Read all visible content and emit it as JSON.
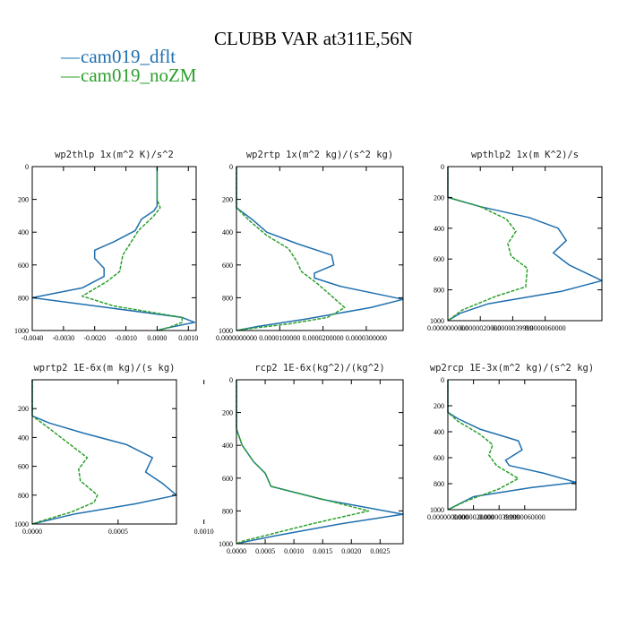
{
  "figure": {
    "title": "CLUBB VAR at311E,56N",
    "colors": {
      "dflt": "#1f6fae",
      "noZM": "#2ca02c"
    }
  },
  "legend": {
    "items": [
      {
        "marker": "—",
        "label": "cam019_dflt",
        "color": "#1f6fae"
      },
      {
        "marker": "—",
        "label": "cam019_noZM",
        "color": "#2ca02c"
      }
    ]
  },
  "chart_data": [
    {
      "type": "line",
      "title": "wp2thlp  1x(m^2 K)/s^2",
      "xlim": [
        -0.004,
        0.00125
      ],
      "ylim": [
        1000,
        0
      ],
      "xticks": [
        "-0.0040",
        "-0.0030",
        "-0.0020",
        "-0.0010",
        "0.0000",
        "0.0010"
      ],
      "xtick_values": [
        -0.004,
        -0.003,
        -0.002,
        -0.001,
        0,
        0.001
      ],
      "yticks": [
        "0",
        "200",
        "400",
        "600",
        "800",
        "1000"
      ],
      "ytick_values": [
        0,
        200,
        400,
        600,
        800,
        1000
      ],
      "series": [
        {
          "name": "cam019_dflt",
          "dashed": false,
          "x": [
            0,
            0,
            0,
            -0.0001,
            -0.0005,
            -0.0007,
            -0.0014,
            -0.002,
            -0.002,
            -0.0017,
            -0.0017,
            -0.0024,
            -0.004,
            -0.002,
            0.0008,
            0.0012,
            0.0003,
            0
          ],
          "y": [
            0,
            200,
            240,
            270,
            320,
            390,
            460,
            510,
            560,
            620,
            670,
            740,
            800,
            850,
            920,
            950,
            985,
            1000
          ]
        },
        {
          "name": "cam019_noZM",
          "dashed": true,
          "x": [
            0,
            0,
            0.0001,
            -0.0001,
            -0.0006,
            -0.0009,
            -0.0011,
            -0.0012,
            -0.0016,
            -0.0024,
            -0.0014,
            0.0008,
            0.0008,
            0.0004,
            0
          ],
          "y": [
            0,
            200,
            250,
            300,
            390,
            480,
            540,
            640,
            700,
            790,
            850,
            920,
            950,
            980,
            1000
          ]
        }
      ]
    },
    {
      "type": "line",
      "title": "wp2rtp  1x(m^2 kg)/(s^2 kg)",
      "xlim": [
        0,
        3.85e-05
      ],
      "ylim": [
        1000,
        0
      ],
      "xticks": [
        "0.0000000000",
        "0.0000100000",
        "0.0000200000",
        "0.0000300000"
      ],
      "xtick_values": [
        0,
        1e-05,
        2e-05,
        3e-05
      ],
      "yticks": [
        "0",
        "200",
        "400",
        "600",
        "800",
        "1000"
      ],
      "ytick_values": [
        0,
        200,
        400,
        600,
        800,
        1000
      ],
      "series": [
        {
          "name": "cam019_dflt",
          "dashed": false,
          "x": [
            0,
            0,
            4e-06,
            7e-06,
            1.4e-05,
            2.2e-05,
            2.25e-05,
            1.8e-05,
            1.8e-05,
            2.4e-05,
            3.85e-05,
            3.1e-05,
            1.6e-05,
            5e-06,
            0
          ],
          "y": [
            0,
            250,
            330,
            400,
            470,
            540,
            600,
            650,
            680,
            730,
            810,
            860,
            930,
            975,
            1000
          ]
        },
        {
          "name": "cam019_noZM",
          "dashed": true,
          "x": [
            0,
            0,
            3e-06,
            7e-06,
            1.2e-05,
            1.4e-05,
            1.5e-05,
            1.9e-05,
            2.5e-05,
            2.1e-05,
            1.2e-05,
            4e-06,
            0
          ],
          "y": [
            0,
            250,
            330,
            420,
            500,
            580,
            640,
            720,
            860,
            920,
            960,
            985,
            1000
          ]
        }
      ]
    },
    {
      "type": "line",
      "title": "wpthlp2  1x(m K^2)/s",
      "xlim": [
        0,
        9.5e-06
      ],
      "ylim": [
        1000,
        0
      ],
      "xticks": [
        "0.0000000000",
        "0.0000020000",
        "0.0000039999",
        "0.0000060000"
      ],
      "xtick_values": [
        0,
        2e-06,
        3.9999e-06,
        6e-06
      ],
      "yticks": [
        "0",
        "200",
        "400",
        "600",
        "800",
        "1000"
      ],
      "ytick_values": [
        0,
        200,
        400,
        600,
        800,
        1000
      ],
      "series": [
        {
          "name": "cam019_dflt",
          "dashed": false,
          "x": [
            0,
            0,
            2e-06,
            5e-06,
            6.8e-06,
            7.3e-06,
            6.5e-06,
            7.5e-06,
            9.5e-06,
            7e-06,
            2.5e-06,
            8e-07,
            0
          ],
          "y": [
            0,
            200,
            260,
            330,
            400,
            480,
            560,
            640,
            740,
            810,
            890,
            950,
            1000
          ]
        },
        {
          "name": "cam019_noZM",
          "dashed": true,
          "x": [
            0,
            0,
            2e-06,
            3.6e-06,
            4.2e-06,
            3.7e-06,
            3.9e-06,
            4.9e-06,
            4.8e-06,
            3e-06,
            9e-07,
            0
          ],
          "y": [
            0,
            200,
            260,
            340,
            420,
            500,
            580,
            660,
            780,
            840,
            930,
            1000
          ]
        }
      ]
    },
    {
      "type": "line",
      "title": "wprtp2  1E-6x(m kg)/(s kg)",
      "xlim": [
        0,
        0.00084
      ],
      "ylim": [
        1000,
        0
      ],
      "xticks": [
        "0.0000",
        "0.0005",
        "0.0010"
      ],
      "xtick_values": [
        0,
        0.0005,
        0.001
      ],
      "yticks": [
        "200",
        "400",
        "600",
        "800",
        "1000"
      ],
      "ytick_values": [
        200,
        400,
        600,
        800,
        1000
      ],
      "series": [
        {
          "name": "cam019_dflt",
          "dashed": false,
          "x": [
            0,
            0,
            0.0001,
            0.0003,
            0.00055,
            0.0007,
            0.00066,
            0.00076,
            0.00084,
            0.0006,
            0.00025,
            0
          ],
          "y": [
            0,
            250,
            300,
            370,
            450,
            540,
            640,
            720,
            800,
            860,
            930,
            1000
          ]
        },
        {
          "name": "cam019_noZM",
          "dashed": true,
          "x": [
            0,
            0,
            8e-05,
            0.0002,
            0.00032,
            0.00027,
            0.00028,
            0.00038,
            0.00036,
            0.00022,
            5e-05,
            0
          ],
          "y": [
            0,
            250,
            320,
            430,
            540,
            620,
            700,
            800,
            850,
            920,
            980,
            1000
          ]
        }
      ]
    },
    {
      "type": "line",
      "title": "rcp2  1E-6x(kg^2)/(kg^2)",
      "xlim": [
        0,
        0.0029
      ],
      "ylim": [
        1000,
        0
      ],
      "xticks": [
        "0.0000",
        "0.0005",
        "0.0010",
        "0.0015",
        "0.0020",
        "0.0025"
      ],
      "xtick_values": [
        0,
        0.0005,
        0.001,
        0.0015,
        0.002,
        0.0025
      ],
      "yticks": [
        "0",
        "200",
        "400",
        "600",
        "800",
        "1000"
      ],
      "ytick_values": [
        0,
        200,
        400,
        600,
        800,
        1000
      ],
      "series": [
        {
          "name": "cam019_dflt",
          "dashed": false,
          "x": [
            0,
            0,
            0.0001,
            0.0003,
            0.0005,
            0.0006,
            0.0015,
            0.0029,
            0.0018,
            0.0007,
            0.0002,
            0
          ],
          "y": [
            0,
            300,
            400,
            500,
            570,
            650,
            730,
            820,
            880,
            950,
            985,
            1000
          ]
        },
        {
          "name": "cam019_noZM",
          "dashed": true,
          "x": [
            0,
            0,
            0.0001,
            0.0003,
            0.0005,
            0.0006,
            0.0014,
            0.0023,
            0.0013,
            0.0005,
            0.0001,
            0
          ],
          "y": [
            0,
            300,
            400,
            500,
            570,
            650,
            720,
            800,
            880,
            950,
            985,
            1000
          ]
        }
      ]
    },
    {
      "type": "line",
      "title": "wp2rcp  1E-3x(m^2 kg)/(s^2 kg)",
      "xlim": [
        0,
        1e-05
      ],
      "ylim": [
        1000,
        0
      ],
      "xticks": [
        "0.0000000000",
        "0.0000020000",
        "0.0000039999",
        "0.0000060000"
      ],
      "xtick_values": [
        0,
        2e-06,
        3.9999e-06,
        6e-06
      ],
      "yticks": [
        "0",
        "200",
        "400",
        "600",
        "800",
        "1000"
      ],
      "ytick_values": [
        0,
        200,
        400,
        600,
        800,
        1000
      ],
      "series": [
        {
          "name": "cam019_dflt",
          "dashed": false,
          "x": [
            0,
            0,
            8e-07,
            2.5e-06,
            5.5e-06,
            5.8e-06,
            4.5e-06,
            4.8e-06,
            7.5e-06,
            1e-05,
            6.5e-06,
            2e-06,
            0
          ],
          "y": [
            0,
            250,
            300,
            380,
            470,
            540,
            620,
            660,
            720,
            790,
            830,
            900,
            1000
          ]
        },
        {
          "name": "cam019_noZM",
          "dashed": true,
          "x": [
            0,
            0,
            8e-07,
            2.5e-06,
            3.5e-06,
            3.2e-06,
            3.8e-06,
            5.5e-06,
            4e-06,
            1.5e-06,
            0
          ],
          "y": [
            0,
            250,
            320,
            420,
            500,
            580,
            660,
            760,
            840,
            930,
            1000
          ]
        }
      ]
    }
  ]
}
